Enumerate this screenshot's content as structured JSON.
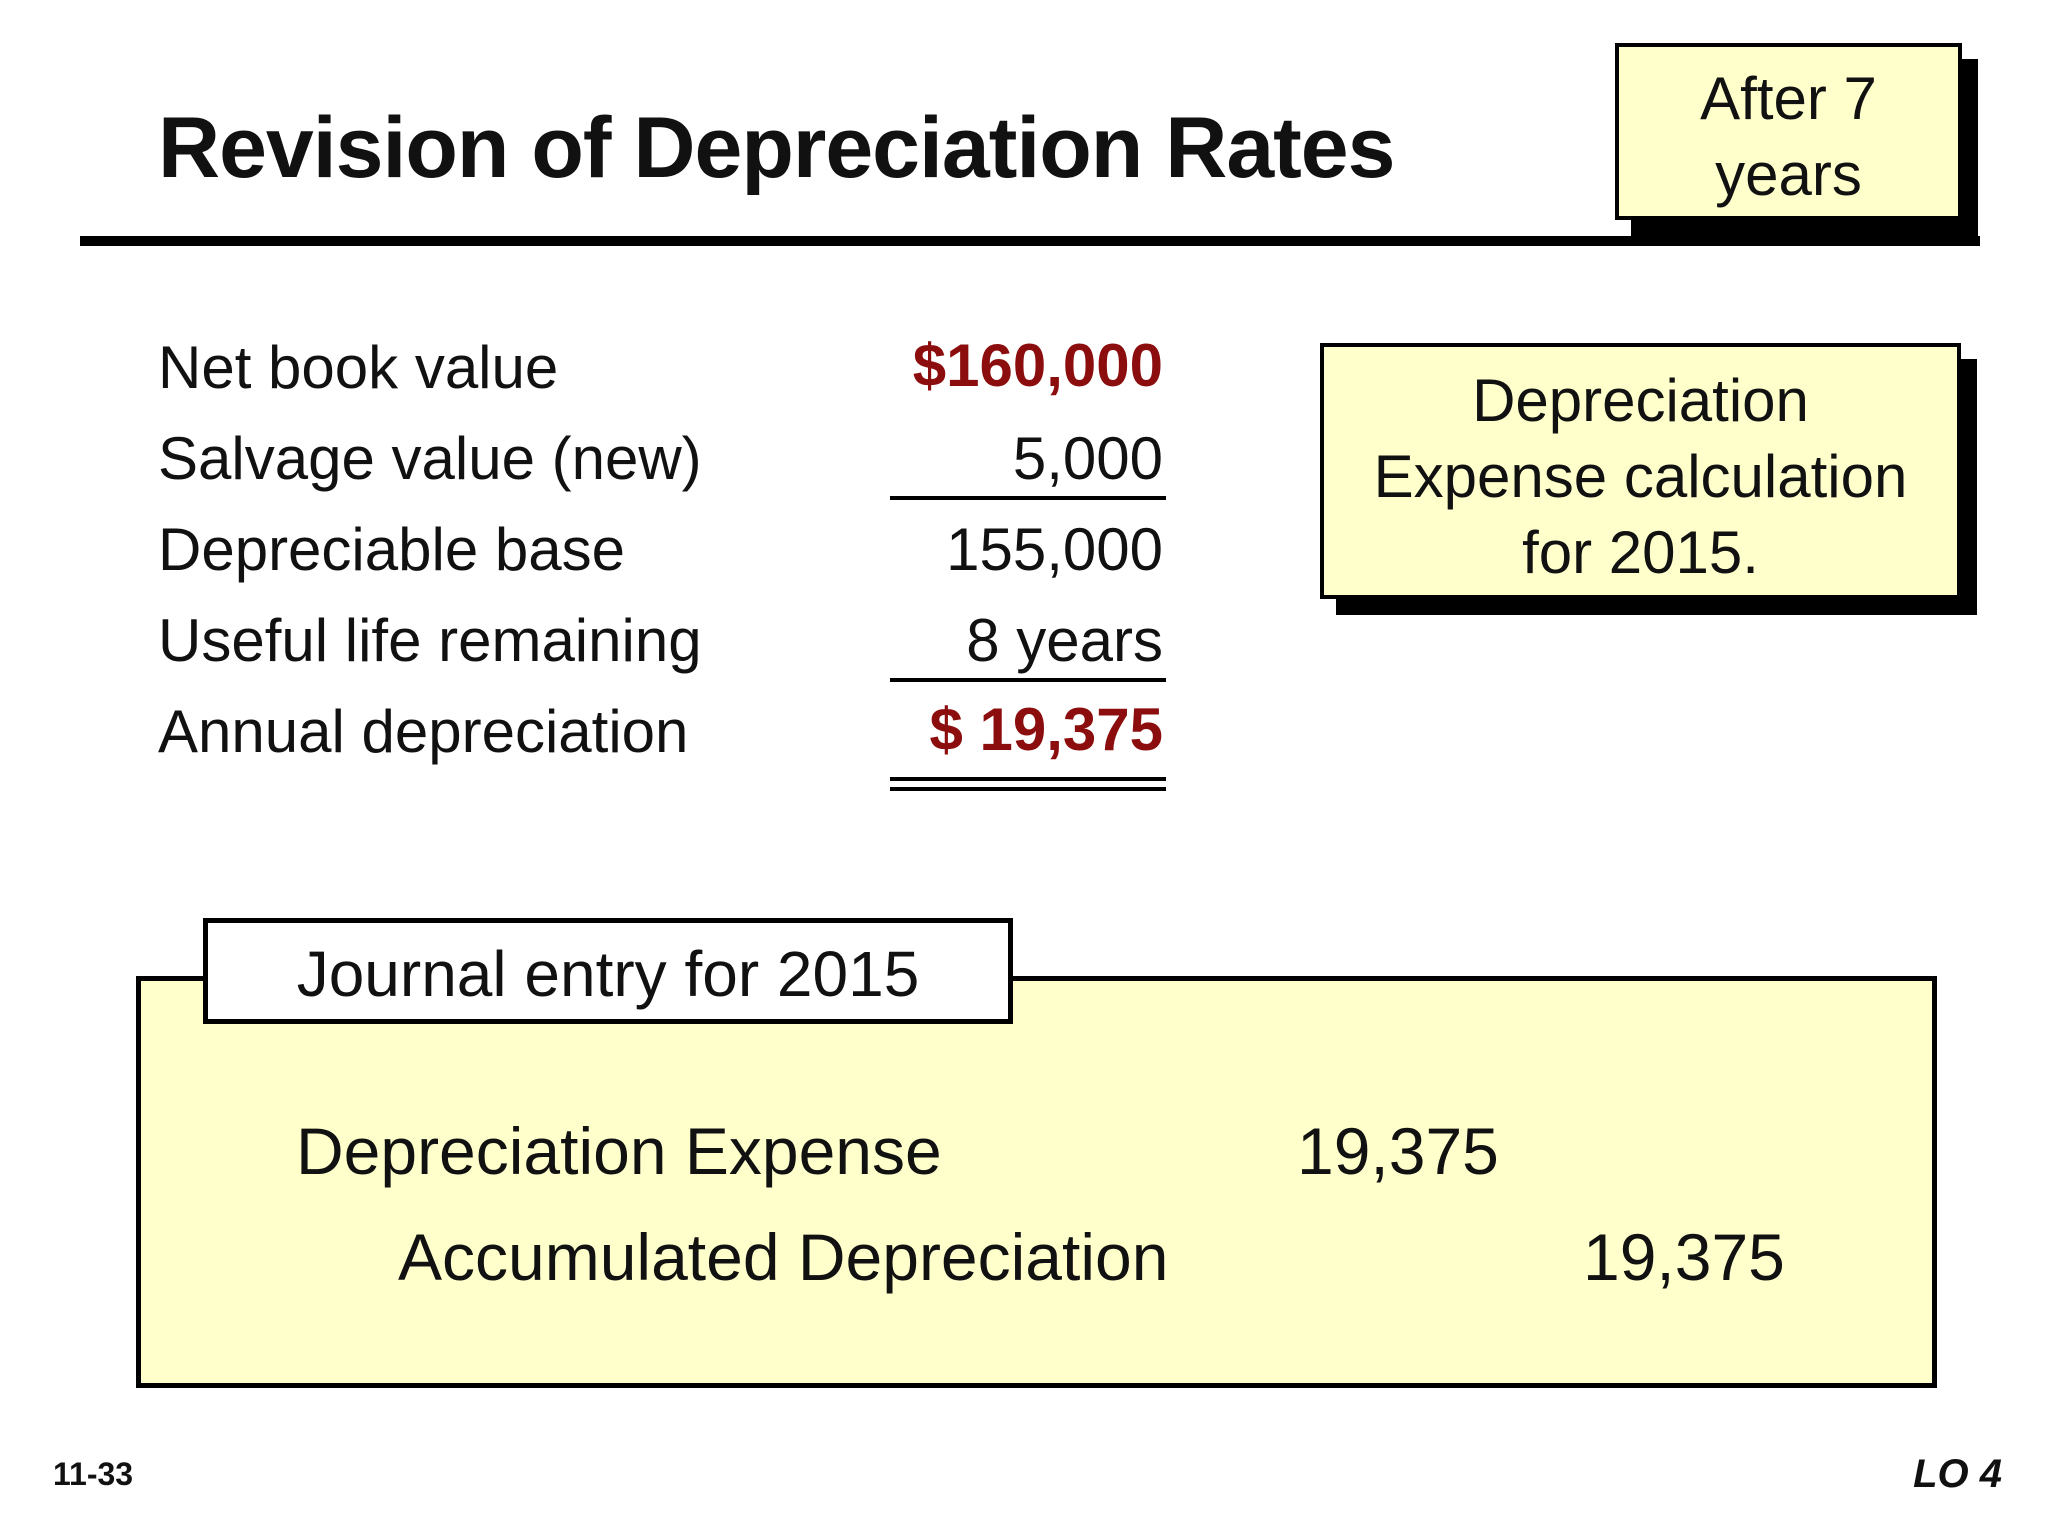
{
  "title": "Revision of Depreciation Rates",
  "after_box": {
    "line1": "After 7",
    "line2": "years"
  },
  "calc_box": {
    "line1": "Depreciation",
    "line2": "Expense calculation",
    "line3": "for 2015."
  },
  "calculation": {
    "rows": [
      {
        "label": "Net book value",
        "value": "$160,000"
      },
      {
        "label": "Salvage value (new)",
        "value": "5,000"
      },
      {
        "label": "Depreciable base",
        "value": "155,000"
      },
      {
        "label": "Useful life remaining",
        "value": "8 years"
      },
      {
        "label": "Annual depreciation",
        "value": "$ 19,375"
      }
    ]
  },
  "journal": {
    "heading": "Journal entry for 2015",
    "debit_account": "Depreciation Expense",
    "debit_amount": "19,375",
    "credit_account": "Accumulated Depreciation",
    "credit_amount": "19,375"
  },
  "footer": {
    "slide_number": "11-33",
    "learning_objective": "LO 4"
  },
  "colors": {
    "highlight_red": "#8b0d0d",
    "box_yellow": "#ffffcc"
  }
}
